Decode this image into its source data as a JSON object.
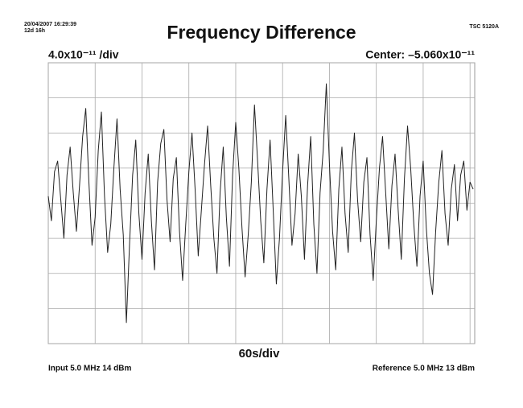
{
  "chart_data": {
    "type": "line",
    "timestamp": "20/04/2007 16:29:39",
    "duration": "12d 16h",
    "title": "Frequency Difference",
    "instrument": "TSC 5120A",
    "y_scale_label": "4.0x10⁻¹¹ /div",
    "center_label": "Center: –5.060x10⁻¹¹",
    "x_scale_label": "60s/div",
    "input_label": "Input 5.0 MHz 14 dBm",
    "reference_label": "Reference 5.0 MHz 13 dBm",
    "color": "#222222",
    "grid": true,
    "xlim": [
      0,
      546
    ],
    "xticks": [
      0,
      60,
      120,
      180,
      240,
      300,
      360,
      420,
      480,
      540
    ],
    "ylim": [
      -4,
      4
    ],
    "yticks": [
      -4,
      -3,
      -2,
      -1,
      0,
      1,
      2,
      3,
      4
    ],
    "x": [
      0,
      4,
      8,
      12,
      16,
      20,
      24,
      28,
      32,
      36,
      40,
      44,
      48,
      52,
      56,
      60,
      64,
      68,
      72,
      76,
      80,
      84,
      88,
      92,
      96,
      100,
      104,
      108,
      112,
      116,
      120,
      124,
      128,
      132,
      136,
      140,
      144,
      148,
      152,
      156,
      160,
      164,
      168,
      172,
      176,
      180,
      184,
      188,
      192,
      196,
      200,
      204,
      208,
      212,
      216,
      220,
      224,
      228,
      232,
      236,
      240,
      244,
      248,
      252,
      256,
      260,
      264,
      268,
      272,
      276,
      280,
      284,
      288,
      292,
      296,
      300,
      304,
      308,
      312,
      316,
      320,
      324,
      328,
      332,
      336,
      340,
      344,
      348,
      352,
      356,
      360,
      364,
      368,
      372,
      376,
      380,
      384,
      388,
      392,
      396,
      400,
      404,
      408,
      412,
      416,
      420,
      424,
      428,
      432,
      436,
      440,
      444,
      448,
      452,
      456,
      460,
      464,
      468,
      472,
      476,
      480,
      484,
      488,
      492,
      496,
      500,
      504,
      508,
      512,
      516,
      520,
      524,
      528,
      532,
      536,
      540,
      544
    ],
    "values": [
      0.2,
      -0.5,
      0.9,
      1.2,
      0.1,
      -1.0,
      0.8,
      1.6,
      0.3,
      -0.8,
      0.5,
      1.9,
      2.7,
      0.6,
      -1.2,
      -0.4,
      1.5,
      2.6,
      0.2,
      -1.4,
      -0.6,
      1.0,
      2.4,
      0.4,
      -0.9,
      -3.4,
      -1.2,
      0.8,
      1.8,
      -0.3,
      -1.6,
      0.3,
      1.4,
      -0.5,
      -1.9,
      0.6,
      1.7,
      2.1,
      0.1,
      -1.1,
      0.7,
      1.3,
      -0.8,
      -2.2,
      -0.6,
      0.9,
      2.0,
      0.4,
      -1.5,
      -0.2,
      1.1,
      2.2,
      0.5,
      -1.0,
      -2.0,
      0.3,
      1.6,
      -0.4,
      -1.8,
      0.8,
      2.3,
      1.0,
      -0.7,
      -2.1,
      -0.9,
      0.6,
      2.8,
      1.2,
      -0.5,
      -1.7,
      0.4,
      1.8,
      -0.2,
      -2.3,
      -1.0,
      0.9,
      2.5,
      0.7,
      -1.2,
      -0.3,
      1.4,
      0.2,
      -1.6,
      0.5,
      1.9,
      -0.6,
      -2.0,
      0.3,
      1.5,
      3.4,
      1.1,
      -0.8,
      -1.9,
      0.4,
      1.6,
      -0.3,
      -1.4,
      0.9,
      2.0,
      0.1,
      -1.1,
      0.6,
      1.3,
      -0.9,
      -2.2,
      -0.5,
      1.0,
      1.9,
      0.3,
      -1.3,
      0.5,
      1.4,
      -0.2,
      -1.6,
      0.7,
      2.2,
      1.0,
      -0.6,
      -1.8,
      0.2,
      1.2,
      -0.7,
      -2.0,
      -2.6,
      -0.8,
      0.6,
      1.5,
      -0.3,
      -1.2,
      0.4,
      1.1,
      -0.5,
      0.8,
      1.2,
      -0.2,
      0.6,
      0.4
    ]
  }
}
